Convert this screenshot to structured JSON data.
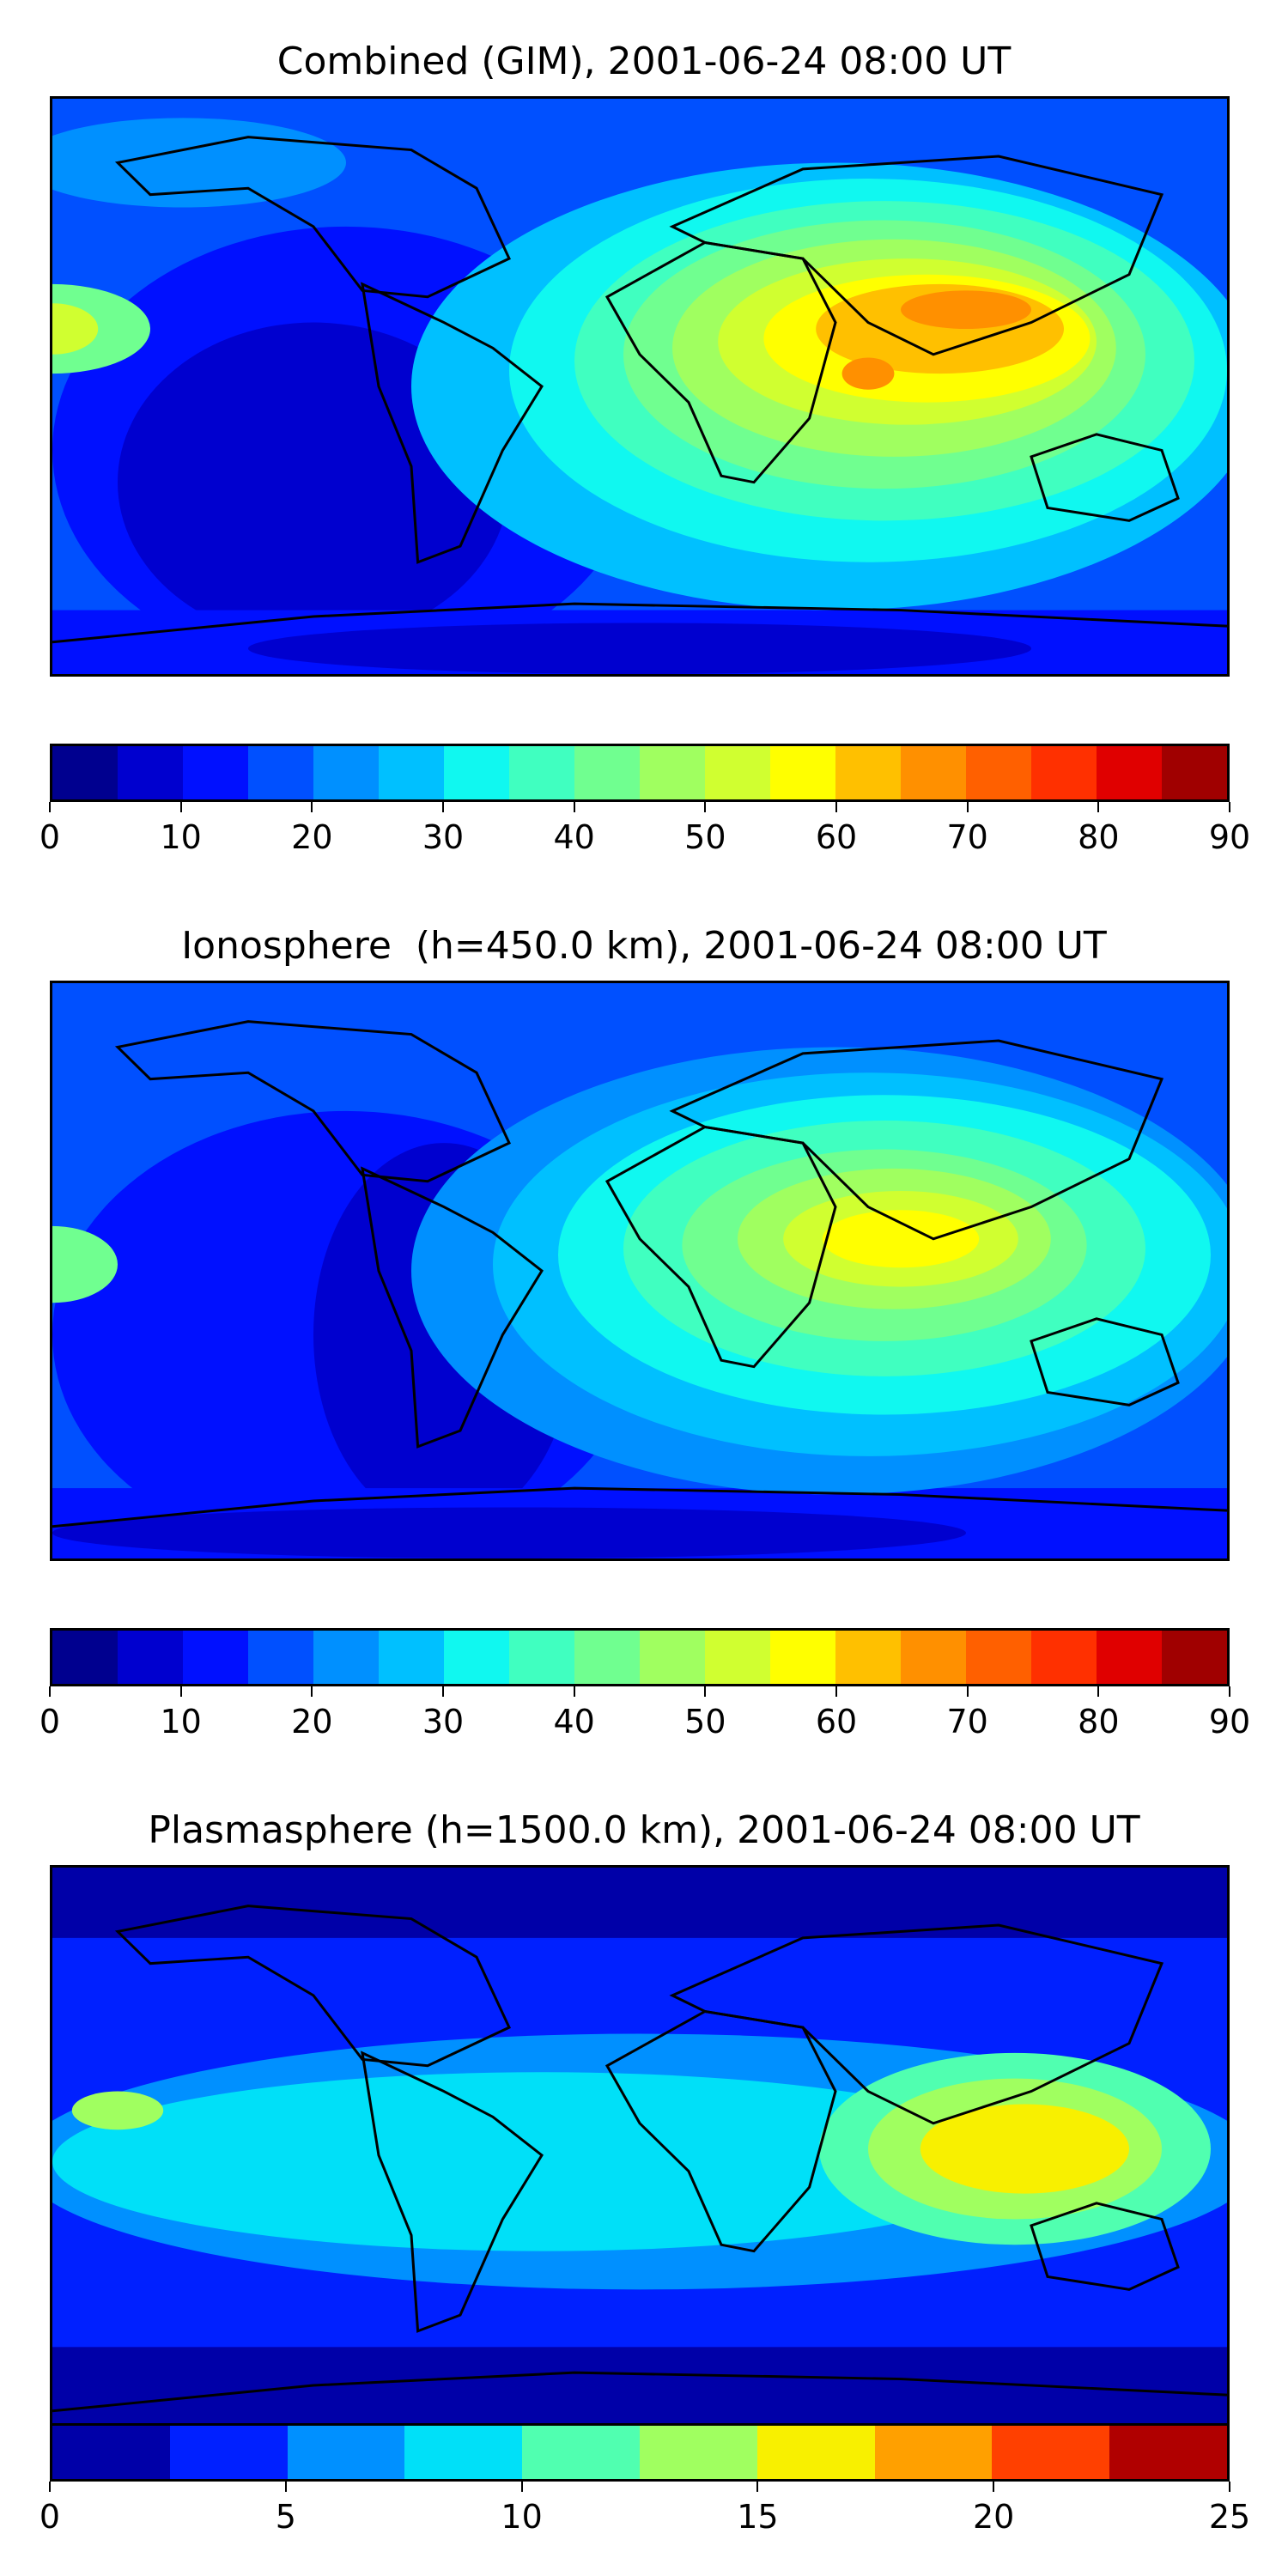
{
  "panels": [
    {
      "title": "Combined (GIM), 2001-06-24 08:00 UT",
      "colorbar": {
        "min": 0,
        "max": 90,
        "colors": [
          "#00008f",
          "#0000cf",
          "#0010ff",
          "#0050ff",
          "#0090ff",
          "#00c0ff",
          "#10f8f0",
          "#40ffc0",
          "#70ff90",
          "#a0ff60",
          "#d0ff30",
          "#ffff00",
          "#ffc000",
          "#ff9000",
          "#ff6000",
          "#ff3000",
          "#e00000",
          "#a00000"
        ],
        "ticks": [
          "0",
          "10",
          "20",
          "30",
          "40",
          "50",
          "60",
          "70",
          "80",
          "90"
        ]
      }
    },
    {
      "title": "Ionosphere  (h=450.0 km), 2001-06-24 08:00 UT",
      "colorbar": {
        "min": 0,
        "max": 90,
        "colors": [
          "#00008f",
          "#0000cf",
          "#0010ff",
          "#0050ff",
          "#0090ff",
          "#00c0ff",
          "#10f8f0",
          "#40ffc0",
          "#70ff90",
          "#a0ff60",
          "#d0ff30",
          "#ffff00",
          "#ffc000",
          "#ff9000",
          "#ff6000",
          "#ff3000",
          "#e00000",
          "#a00000"
        ],
        "ticks": [
          "0",
          "10",
          "20",
          "30",
          "40",
          "50",
          "60",
          "70",
          "80",
          "90"
        ]
      }
    },
    {
      "title": "Plasmasphere (h=1500.0 km), 2001-06-24 08:00 UT",
      "colorbar": {
        "min": 0,
        "max": 25,
        "colors": [
          "#0000a8",
          "#0020ff",
          "#0090ff",
          "#00e0f8",
          "#50ffb0",
          "#a0ff60",
          "#f8f000",
          "#ffa000",
          "#ff4000",
          "#b00000"
        ],
        "ticks": [
          "0",
          "5",
          "10",
          "15",
          "20",
          "25"
        ]
      }
    }
  ]
}
